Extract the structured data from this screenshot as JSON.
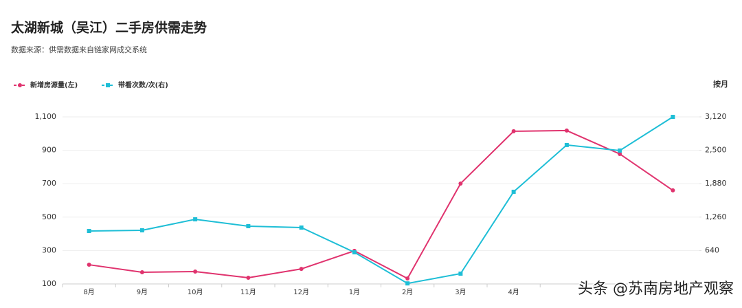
{
  "chart_data": {
    "type": "line",
    "title": "太湖新城（吴江）二手房供需走势",
    "subtitle": "数据来源：供需数据来自链家网成交系统",
    "period_label": "按月",
    "watermark": "头条 @苏南房地产观察",
    "categories": [
      "8月",
      "9月",
      "10月",
      "11月",
      "12月",
      "1月",
      "2月",
      "3月",
      "4月",
      null,
      null,
      null
    ],
    "series": [
      {
        "name": "新增房源量(左)",
        "color": "#e0336e",
        "marker": "circle",
        "values": [
          215,
          170,
          174,
          137,
          190,
          298,
          133,
          701,
          1014,
          1018,
          878,
          660
        ]
      },
      {
        "name": "带看次数/次(右)",
        "color": "#1ebed6",
        "marker": "square",
        "axis": "y2",
        "values": [
          1002,
          1015,
          1219,
          1092,
          1066,
          607,
          30,
          211,
          1730,
          2598,
          2495,
          3120
        ]
      }
    ],
    "ylim": [
      100,
      1100
    ],
    "yticks": [
      100,
      300,
      500,
      700,
      900,
      {
        "value": 1100,
        "label": "1,100"
      }
    ],
    "y2lim": [
      20,
      3120
    ],
    "y2ticks": [
      640,
      {
        "value": 1260,
        "label": "1,260"
      },
      {
        "value": 1880,
        "label": "1,880"
      },
      {
        "value": 2500,
        "label": "2,500"
      },
      {
        "value": 3120,
        "label": "3,120"
      }
    ],
    "grid": true
  }
}
